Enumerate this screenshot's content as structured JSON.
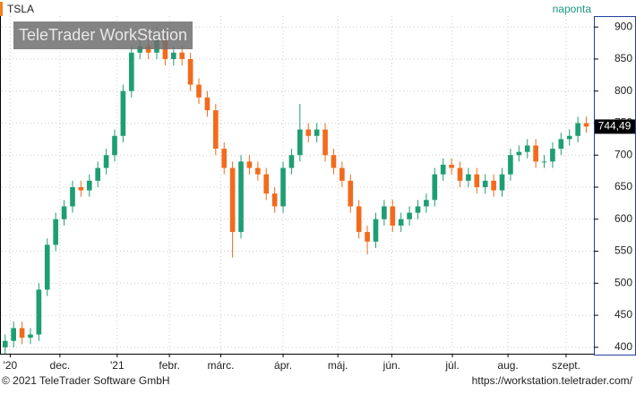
{
  "chart_data": {
    "type": "candlestick",
    "title": "TSLA",
    "subtitle": "naponta",
    "watermark": "TeleTrader WorkStation",
    "footer_left": "© 2021 TeleTrader Software GmbH",
    "footer_right": "https://workstation.teletrader.com/",
    "up_color": "#1e9e74",
    "down_color": "#f26b1d",
    "grid": true,
    "xlim": [
      -0.4,
      69.9
    ],
    "ylim": [
      390,
      917
    ],
    "yticks": [
      400,
      450,
      500,
      550,
      600,
      650,
      700,
      750,
      800,
      850,
      900
    ],
    "xticks": [
      {
        "value": 0.6,
        "label": "'20"
      },
      {
        "value": 6.5,
        "label": "dec."
      },
      {
        "value": 13.3,
        "label": "'21"
      },
      {
        "value": 19.5,
        "label": "febr."
      },
      {
        "value": 25.6,
        "label": "márc."
      },
      {
        "value": 33,
        "label": "ápr."
      },
      {
        "value": 39.5,
        "label": "máj."
      },
      {
        "value": 45.9,
        "label": "jún."
      },
      {
        "value": 53.1,
        "label": "júl."
      },
      {
        "value": 59.7,
        "label": "aug."
      },
      {
        "value": 66.6,
        "label": "szept."
      }
    ],
    "last_price": {
      "value": 744.49,
      "label": "744,49"
    },
    "open": [
      400,
      410,
      430,
      415,
      420,
      490,
      560,
      600,
      620,
      650,
      645,
      660,
      680,
      700,
      730,
      800,
      860,
      870,
      860,
      880,
      850,
      860,
      850,
      810,
      790,
      770,
      710,
      680,
      580,
      690,
      680,
      670,
      640,
      620,
      680,
      700,
      740,
      730,
      740,
      700,
      680,
      660,
      620,
      580,
      565,
      600,
      620,
      590,
      600,
      610,
      620,
      630,
      670,
      685,
      680,
      660,
      670,
      650,
      660,
      645,
      670,
      700,
      705,
      715,
      690,
      690,
      710,
      725,
      730,
      750
    ],
    "high": [
      420,
      440,
      440,
      430,
      500,
      570,
      610,
      630,
      660,
      660,
      670,
      690,
      710,
      740,
      810,
      870,
      880,
      880,
      900,
      890,
      870,
      870,
      860,
      820,
      800,
      780,
      720,
      690,
      700,
      700,
      690,
      680,
      650,
      690,
      710,
      780,
      750,
      750,
      750,
      710,
      690,
      670,
      630,
      590,
      610,
      630,
      630,
      610,
      620,
      630,
      640,
      680,
      695,
      695,
      690,
      680,
      680,
      670,
      670,
      680,
      710,
      715,
      725,
      725,
      700,
      720,
      735,
      740,
      760,
      760
    ],
    "low": [
      390,
      400,
      405,
      405,
      410,
      480,
      550,
      590,
      610,
      635,
      635,
      650,
      670,
      690,
      720,
      790,
      850,
      850,
      850,
      840,
      840,
      840,
      800,
      780,
      760,
      700,
      670,
      540,
      570,
      670,
      660,
      630,
      610,
      610,
      670,
      690,
      720,
      720,
      690,
      670,
      650,
      610,
      570,
      545,
      555,
      590,
      580,
      580,
      590,
      600,
      610,
      620,
      660,
      670,
      650,
      650,
      640,
      640,
      635,
      635,
      660,
      690,
      695,
      680,
      680,
      680,
      700,
      715,
      720,
      735
    ],
    "close": [
      410,
      430,
      415,
      420,
      490,
      560,
      600,
      620,
      650,
      645,
      660,
      680,
      700,
      730,
      800,
      860,
      870,
      860,
      880,
      850,
      860,
      850,
      810,
      790,
      770,
      710,
      680,
      580,
      690,
      680,
      670,
      640,
      620,
      680,
      700,
      740,
      730,
      740,
      700,
      680,
      660,
      620,
      580,
      565,
      600,
      620,
      590,
      600,
      610,
      620,
      630,
      670,
      685,
      680,
      660,
      670,
      650,
      660,
      645,
      670,
      700,
      705,
      715,
      690,
      690,
      710,
      725,
      730,
      750,
      744.49
    ]
  }
}
